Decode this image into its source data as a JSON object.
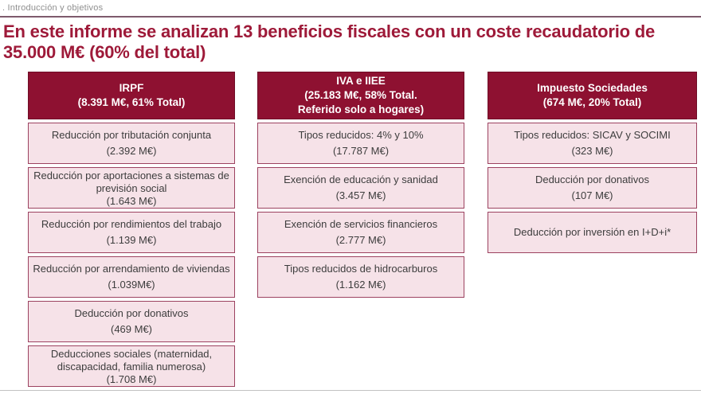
{
  "breadcrumb": ". Introducción y objetivos",
  "title": {
    "line1": "En este informe se analizan 13 beneficios fiscales con un coste recaudatorio de",
    "line2": "35.000 M€ (60% del total)"
  },
  "colors": {
    "accent_maroon": "#8e1131",
    "title_red": "#9e1a39",
    "box_pink": "#f6e2e8",
    "box_border": "#9c4260",
    "text_dark": "#3d3d3d"
  },
  "columns": [
    {
      "id": "irpf",
      "header_lines": [
        "IRPF",
        "(8.391 M€, 61% Total)"
      ],
      "items": [
        {
          "label": "Reducción por tributación conjunta",
          "amount": "(2.392 M€)"
        },
        {
          "label": "Reducción por aportaciones a sistemas de previsión social",
          "amount": "(1.643 M€)"
        },
        {
          "label": "Reducción por rendimientos del trabajo",
          "amount": "(1.139 M€)"
        },
        {
          "label": "Reducción por arrendamiento de viviendas",
          "amount": "(1.039M€)"
        },
        {
          "label": "Deducción por donativos",
          "amount": "(469 M€)"
        },
        {
          "label": "Deducciones sociales (maternidad, discapacidad, familia numerosa)",
          "amount": "(1.708 M€)"
        }
      ]
    },
    {
      "id": "iva-iiee",
      "header_lines": [
        "IVA e IIEE",
        "(25.183 M€, 58% Total.",
        "Referido solo a hogares)"
      ],
      "items": [
        {
          "label": "Tipos reducidos: 4% y 10%",
          "amount": "(17.787 M€)"
        },
        {
          "label": "Exención de educación y sanidad",
          "amount": "(3.457 M€)"
        },
        {
          "label": "Exención de servicios financieros",
          "amount": "(2.777 M€)"
        },
        {
          "label": "Tipos reducidos de hidrocarburos",
          "amount": "(1.162 M€)"
        }
      ]
    },
    {
      "id": "impuesto-sociedades",
      "header_lines": [
        "Impuesto Sociedades",
        "(674 M€, 20% Total)"
      ],
      "items": [
        {
          "label": "Tipos reducidos: SICAV y SOCIMI",
          "amount": "(323 M€)"
        },
        {
          "label": "Deducción por donativos",
          "amount": "(107 M€)"
        },
        {
          "label": "Deducción por inversión en I+D+i*",
          "amount": ""
        }
      ]
    }
  ]
}
